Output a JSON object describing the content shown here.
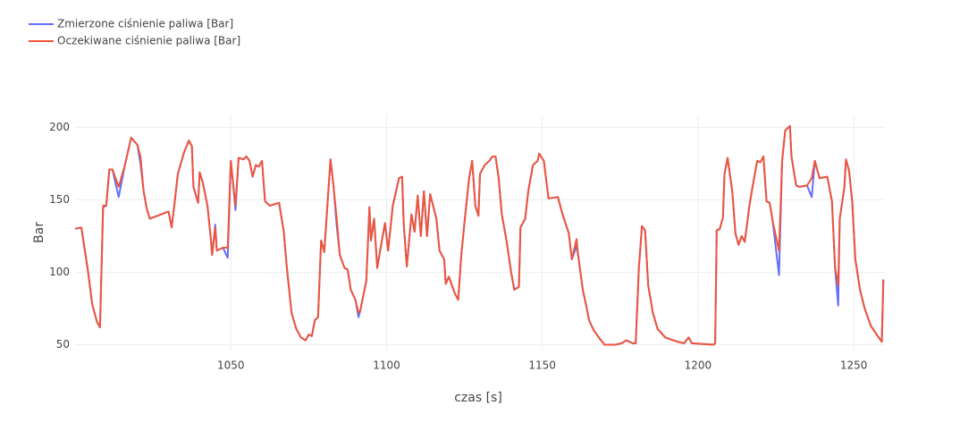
{
  "chart_data": {
    "type": "line",
    "xlabel": "czas [s]",
    "ylabel": "Bar",
    "x": [
      1000,
      1002,
      1004,
      1005.5,
      1007,
      1008,
      1009,
      1010,
      1011,
      1012,
      1014,
      1016,
      1018,
      1020,
      1021,
      1022,
      1023,
      1024,
      1030,
      1031,
      1032,
      1033,
      1035,
      1036,
      1036.5,
      1037.5,
      1038,
      1039.5,
      1040,
      1041,
      1042.5,
      1043.5,
      1044,
      1045,
      1045.5,
      1047.5,
      1049,
      1050,
      1051.5,
      1052.5,
      1054,
      1055,
      1056,
      1057,
      1058,
      1059,
      1060,
      1061,
      1062.5,
      1065.5,
      1067,
      1068,
      1069.5,
      1071,
      1072.5,
      1074,
      1075,
      1076,
      1077,
      1078,
      1079,
      1080,
      1082,
      1083,
      1084,
      1085,
      1086.5,
      1087.5,
      1088.5,
      1090,
      1091,
      1091.5,
      1093.5,
      1094.5,
      1095,
      1096,
      1097,
      1098.5,
      1099.5,
      1100.5,
      1102,
      1104,
      1105,
      1105.5,
      1106.5,
      1108,
      1109,
      1110,
      1111,
      1112,
      1113,
      1114,
      1116,
      1117,
      1118.5,
      1119,
      1120,
      1121,
      1122,
      1123,
      1124,
      1125,
      1126.5,
      1127.5,
      1128.5,
      1129.5,
      1130,
      1131.5,
      1133,
      1134,
      1135,
      1136,
      1137,
      1138.5,
      1140,
      1141,
      1142.5,
      1143,
      1144.5,
      1145.5,
      1147,
      1148.5,
      1149,
      1150.5,
      1152,
      1155,
      1156.5,
      1158.5,
      1159.5,
      1161,
      1161.5,
      1163,
      1164,
      1165,
      1166.5,
      1168.5,
      1170,
      1173.5,
      1175.5,
      1177,
      1179,
      1180,
      1181,
      1182,
      1183,
      1184,
      1185.5,
      1187,
      1189.5,
      1193.5,
      1195.5,
      1197,
      1198,
      1205,
      1205.5,
      1206,
      1207,
      1208,
      1208.5,
      1209.5,
      1211,
      1212,
      1213,
      1214,
      1215,
      1216.5,
      1217.5,
      1219,
      1220,
      1221,
      1222,
      1223,
      1224,
      1226,
      1227,
      1228,
      1229.5,
      1230,
      1231.5,
      1232.5,
      1235,
      1236.5,
      1237.5,
      1239,
      1241.5,
      1243,
      1244,
      1245,
      1245.5,
      1247,
      1247.5,
      1248.5,
      1249.5,
      1250.5,
      1252,
      1253.5,
      1255.5,
      1258,
      1259,
      1259.5
    ],
    "series": [
      {
        "name": "Zmierzone ciśnienie paliwa [Bar]",
        "color": "#636efa",
        "values": [
          130,
          131,
          103,
          78,
          66,
          62,
          145,
          146,
          171,
          171,
          152,
          174,
          193,
          188,
          175,
          156,
          144,
          137,
          142,
          131,
          149,
          168,
          183,
          188,
          191,
          187,
          159,
          148,
          169,
          162,
          146,
          125,
          112,
          133,
          115,
          117,
          110,
          177,
          143,
          179,
          178,
          180,
          177,
          166,
          174,
          173,
          177,
          149,
          146,
          148,
          128,
          103,
          72,
          61,
          55,
          53,
          57,
          56,
          67,
          69,
          122,
          114,
          178,
          159,
          132,
          112,
          103,
          102,
          88,
          81,
          69,
          73,
          94,
          145,
          122,
          137,
          103,
          122,
          134,
          115,
          146,
          165,
          166,
          134,
          104,
          140,
          128,
          153,
          125,
          156,
          125,
          154,
          137,
          115,
          109,
          92,
          97,
          91,
          85,
          81,
          112,
          134,
          165,
          177,
          146,
          139,
          168,
          174,
          177,
          180,
          180,
          165,
          140,
          122,
          100,
          88,
          90,
          131,
          137,
          156,
          174,
          177,
          182,
          177,
          151,
          152,
          140,
          127,
          109,
          118,
          112,
          88,
          78,
          67,
          60,
          54,
          50,
          50,
          51,
          53,
          51,
          51,
          103,
          132,
          129,
          91,
          72,
          61,
          55,
          52,
          51,
          55,
          51,
          50,
          51,
          129,
          130,
          138,
          168,
          179,
          156,
          127,
          119,
          125,
          121,
          146,
          159,
          177,
          176,
          180,
          149,
          148,
          135,
          98,
          177,
          198,
          201,
          180,
          160,
          159,
          160,
          152,
          177,
          165,
          166,
          149,
          103,
          77,
          137,
          159,
          178,
          170,
          149,
          109,
          88,
          75,
          63,
          55,
          52,
          95
        ]
      },
      {
        "name": "Oczekiwane ciśnienie paliwa [Bar]",
        "color": "#ef553b",
        "values": [
          130,
          131,
          103,
          78,
          66,
          62,
          146,
          146,
          171,
          171,
          159,
          174,
          193,
          188,
          180,
          156,
          144,
          137,
          142,
          131,
          149,
          168,
          183,
          188,
          191,
          187,
          159,
          148,
          169,
          162,
          146,
          125,
          112,
          131,
          115,
          117,
          117,
          177,
          146,
          179,
          178,
          180,
          177,
          166,
          174,
          173,
          177,
          149,
          146,
          148,
          128,
          103,
          72,
          61,
          55,
          53,
          57,
          56,
          67,
          69,
          122,
          114,
          178,
          159,
          137,
          112,
          103,
          102,
          88,
          81,
          72,
          73,
          94,
          145,
          122,
          137,
          103,
          122,
          134,
          115,
          146,
          165,
          166,
          134,
          104,
          140,
          128,
          153,
          125,
          156,
          125,
          154,
          137,
          115,
          109,
          92,
          97,
          91,
          85,
          81,
          112,
          134,
          165,
          177,
          146,
          139,
          168,
          174,
          177,
          180,
          180,
          165,
          140,
          122,
          100,
          88,
          90,
          131,
          137,
          156,
          174,
          177,
          182,
          177,
          151,
          152,
          140,
          127,
          109,
          123,
          112,
          88,
          78,
          67,
          60,
          54,
          50,
          50,
          51,
          53,
          51,
          51,
          103,
          132,
          129,
          91,
          72,
          61,
          55,
          52,
          51,
          55,
          51,
          50,
          51,
          129,
          130,
          138,
          168,
          179,
          156,
          127,
          119,
          125,
          121,
          146,
          159,
          177,
          176,
          180,
          149,
          148,
          135,
          115,
          177,
          198,
          201,
          180,
          160,
          159,
          160,
          165,
          177,
          165,
          166,
          149,
          103,
          91,
          137,
          159,
          178,
          170,
          149,
          109,
          88,
          75,
          63,
          55,
          52,
          95
        ]
      }
    ],
    "xlim": [
      1000,
      1260
    ],
    "ylim": [
      46,
      209
    ],
    "xticks": [
      1050,
      1100,
      1150,
      1200,
      1250
    ],
    "yticks": [
      50,
      100,
      150,
      200
    ],
    "grid": true,
    "legend": "top-left"
  }
}
